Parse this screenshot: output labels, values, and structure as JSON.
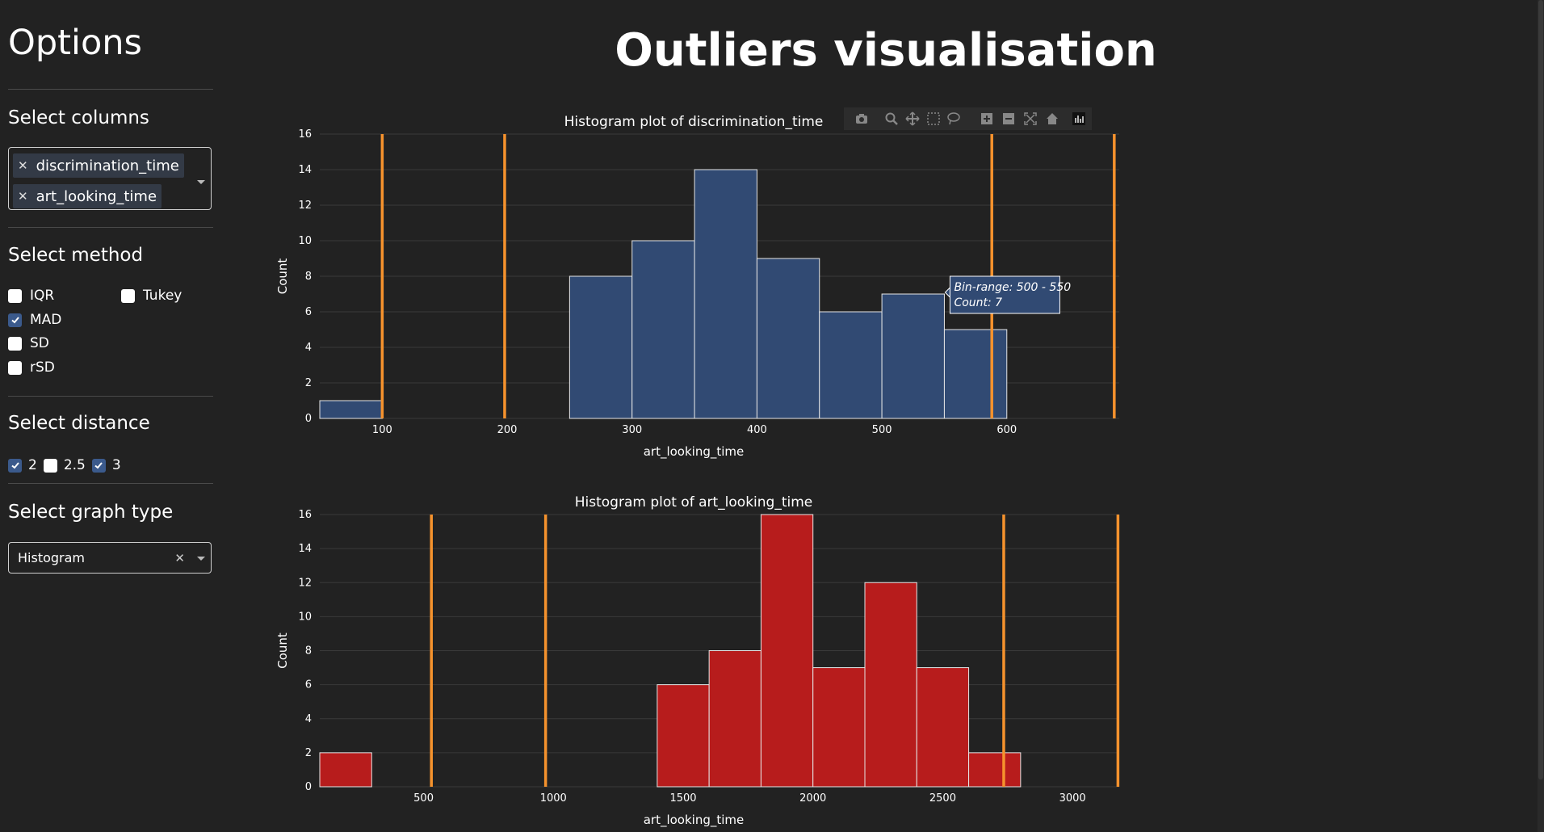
{
  "sidebar": {
    "title": "Options",
    "columns_label": "Select columns",
    "selected_columns": [
      "discrimination_time",
      "art_looking_time"
    ],
    "method_label": "Select method",
    "methods": [
      {
        "label": "IQR",
        "checked": false
      },
      {
        "label": "Tukey",
        "checked": false
      },
      {
        "label": "MAD",
        "checked": true
      },
      {
        "label": "SD",
        "checked": false
      },
      {
        "label": "rSD",
        "checked": false
      }
    ],
    "distance_label": "Select distance",
    "distances": [
      {
        "label": "2",
        "checked": true
      },
      {
        "label": "2.5",
        "checked": false
      },
      {
        "label": "3",
        "checked": true
      }
    ],
    "graph_type_label": "Select graph type",
    "graph_type_value": "Histogram"
  },
  "main": {
    "title": "Outliers visualisation"
  },
  "modebar": {
    "icons": [
      "camera-icon",
      "zoom-icon",
      "pan-icon",
      "box-select-icon",
      "lasso-icon",
      "zoom-in-icon",
      "zoom-out-icon",
      "autoscale-icon",
      "home-icon",
      "plotly-logo-icon"
    ]
  },
  "colors": {
    "bar1": "#314a73",
    "bar2": "#b71c1c",
    "outlier_line": "#f5922d",
    "grid": "#3a3a3a"
  },
  "chart_data": [
    {
      "type": "bar",
      "title": "Histogram plot of discrimination_time",
      "xlabel": "art_looking_time",
      "ylabel": "Count",
      "xlim": [
        50,
        690
      ],
      "ylim": [
        0,
        16
      ],
      "xticks": [
        100,
        200,
        300,
        400,
        500,
        600
      ],
      "yticks": [
        0,
        2,
        4,
        6,
        8,
        10,
        12,
        14,
        16
      ],
      "bins": [
        {
          "x0": 50,
          "x1": 100,
          "count": 1
        },
        {
          "x0": 250,
          "x1": 300,
          "count": 8
        },
        {
          "x0": 300,
          "x1": 350,
          "count": 10
        },
        {
          "x0": 350,
          "x1": 400,
          "count": 14
        },
        {
          "x0": 400,
          "x1": 450,
          "count": 9
        },
        {
          "x0": 450,
          "x1": 500,
          "count": 6
        },
        {
          "x0": 500,
          "x1": 550,
          "count": 7
        },
        {
          "x0": 550,
          "x1": 600,
          "count": 5
        }
      ],
      "vlines": [
        100,
        198,
        588,
        686
      ],
      "tooltip": {
        "line1": "Bin-range: 500 - 550",
        "line2": "Count: 7",
        "bin_index": 6
      }
    },
    {
      "type": "bar",
      "title": "Histogram plot of art_looking_time",
      "xlabel": "art_looking_time",
      "ylabel": "Count",
      "xlim": [
        100,
        3180
      ],
      "ylim": [
        0,
        16
      ],
      "xticks": [
        500,
        1000,
        1500,
        2000,
        2500,
        3000
      ],
      "yticks": [
        0,
        2,
        4,
        6,
        8,
        10,
        12,
        14,
        16
      ],
      "bins": [
        {
          "x0": 100,
          "x1": 300,
          "count": 2
        },
        {
          "x0": 1400,
          "x1": 1600,
          "count": 6
        },
        {
          "x0": 1600,
          "x1": 1800,
          "count": 8
        },
        {
          "x0": 1800,
          "x1": 2000,
          "count": 16
        },
        {
          "x0": 2000,
          "x1": 2200,
          "count": 7
        },
        {
          "x0": 2200,
          "x1": 2400,
          "count": 12
        },
        {
          "x0": 2400,
          "x1": 2600,
          "count": 7
        },
        {
          "x0": 2600,
          "x1": 2800,
          "count": 2
        }
      ],
      "vlines": [
        530,
        970,
        2735,
        3175
      ]
    }
  ]
}
